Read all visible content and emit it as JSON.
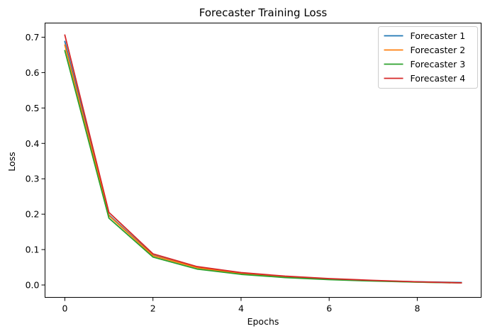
{
  "chart_data": {
    "type": "line",
    "title": "Forecaster Training Loss",
    "xlabel": "Epochs",
    "ylabel": "Loss",
    "xlim": [
      -0.45,
      9.45
    ],
    "ylim": [
      -0.035,
      0.74
    ],
    "xticks": [
      0,
      2,
      4,
      6,
      8
    ],
    "xtick_labels": [
      "0",
      "2",
      "4",
      "6",
      "8"
    ],
    "yticks": [
      0.0,
      0.1,
      0.2,
      0.3,
      0.4,
      0.5,
      0.6,
      0.7
    ],
    "ytick_labels": [
      "0.0",
      "0.1",
      "0.2",
      "0.3",
      "0.4",
      "0.5",
      "0.6",
      "0.7"
    ],
    "grid": false,
    "legend_position": "top-right",
    "x": [
      0,
      1,
      2,
      3,
      4,
      5,
      6,
      7,
      8,
      9
    ],
    "series": [
      {
        "name": "Forecaster 1",
        "color": "#1f77b4",
        "values": [
          0.688,
          0.198,
          0.084,
          0.049,
          0.033,
          0.023,
          0.017,
          0.012,
          0.009,
          0.007
        ]
      },
      {
        "name": "Forecaster 2",
        "color": "#ff7f0e",
        "values": [
          0.678,
          0.196,
          0.083,
          0.049,
          0.032,
          0.023,
          0.016,
          0.012,
          0.008,
          0.006
        ]
      },
      {
        "name": "Forecaster 3",
        "color": "#2ca02c",
        "values": [
          0.662,
          0.189,
          0.079,
          0.045,
          0.03,
          0.021,
          0.015,
          0.011,
          0.008,
          0.006
        ]
      },
      {
        "name": "Forecaster 4",
        "color": "#d62728",
        "values": [
          0.706,
          0.205,
          0.088,
          0.052,
          0.035,
          0.025,
          0.018,
          0.013,
          0.009,
          0.006
        ]
      }
    ]
  }
}
